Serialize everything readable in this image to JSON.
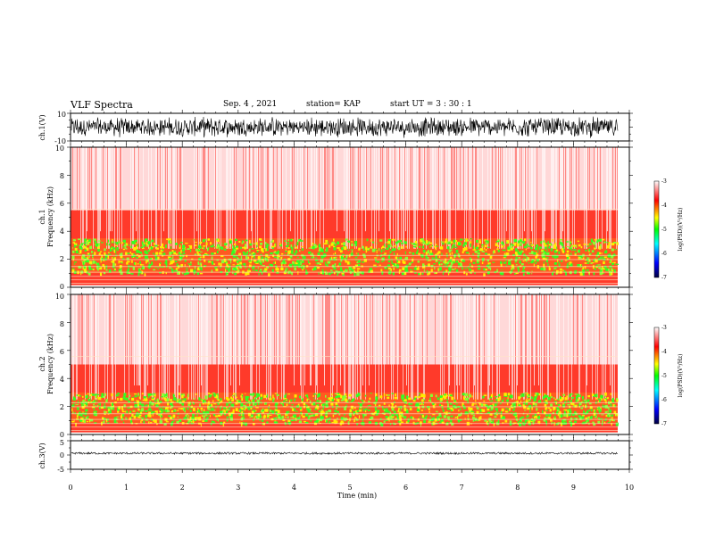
{
  "header": {
    "title": "VLF Spectra",
    "date": "Sep. 4 , 2021",
    "station": "station= KAP",
    "start": "start UT =  3 : 30 : 1"
  },
  "chart_data": [
    {
      "type": "line",
      "panel": "ch1-waveform",
      "ylabel": "ch.1(V)",
      "ylim": [
        -10,
        10
      ],
      "y_tick_labels": [
        "10",
        "-10"
      ],
      "xlim": [
        0,
        10
      ],
      "series_color": "#000000",
      "description_of_data": "dense noise waveform spanning roughly -8 V to 8 V over 0 to 9.8 min"
    },
    {
      "type": "heatmap",
      "panel": "ch1-spectrogram",
      "ylabel": "ch.1\nFrequency (kHz)",
      "ylabel_line1": "ch.1",
      "ylabel_line2": "Frequency (kHz)",
      "ylim": [
        0,
        10
      ],
      "y_tick_labels": [
        "0",
        "2",
        "4",
        "6",
        "8",
        "10"
      ],
      "xlim": [
        0,
        10
      ],
      "data_extent_min": 9.8,
      "colorbar": {
        "label": "log(PSD)(V²/Hz)",
        "range": [
          -7,
          -3
        ],
        "tick_labels": [
          "-3",
          "-4",
          "-5",
          "-6",
          "-7"
        ],
        "colors": [
          "#000040",
          "#0000ff",
          "#00ffff",
          "#00ff00",
          "#ffff00",
          "#ff0000",
          "#ffffff"
        ]
      },
      "bands_khz": {
        "intense_green_yellow": [
          1.0,
          3.5
        ],
        "red": [
          0,
          5.5
        ],
        "whitish": [
          5.5,
          10
        ]
      }
    },
    {
      "type": "heatmap",
      "panel": "ch2-spectrogram",
      "ylabel_line1": "ch.2",
      "ylabel_line2": "Frequency (kHz)",
      "ylim": [
        0,
        10
      ],
      "y_tick_labels": [
        "0",
        "2",
        "4",
        "6",
        "8",
        "10"
      ],
      "xlim": [
        0,
        10
      ],
      "colorbar": {
        "label": "log(PSD)(V²/Hz)",
        "range": [
          -7,
          -3
        ],
        "tick_labels": [
          "-3",
          "-4",
          "-5",
          "-6",
          "-7"
        ]
      },
      "bands_khz": {
        "intense_green_yellow": [
          0.8,
          3.0
        ],
        "red": [
          0,
          5.0
        ],
        "whitish": [
          5.0,
          10
        ]
      }
    },
    {
      "type": "line",
      "panel": "ch3-waveform",
      "ylabel": "ch.3(V)",
      "ylim": [
        -5,
        5
      ],
      "y_tick_labels": [
        "5",
        "0",
        "-5"
      ],
      "xlim": [
        0,
        10
      ],
      "x_tick_labels": [
        "0",
        "1",
        "2",
        "3",
        "4",
        "5",
        "6",
        "7",
        "8",
        "9",
        "10"
      ],
      "xlabel": "Time (min)",
      "baseline_v": 0.6,
      "series_color": "#000000"
    }
  ]
}
